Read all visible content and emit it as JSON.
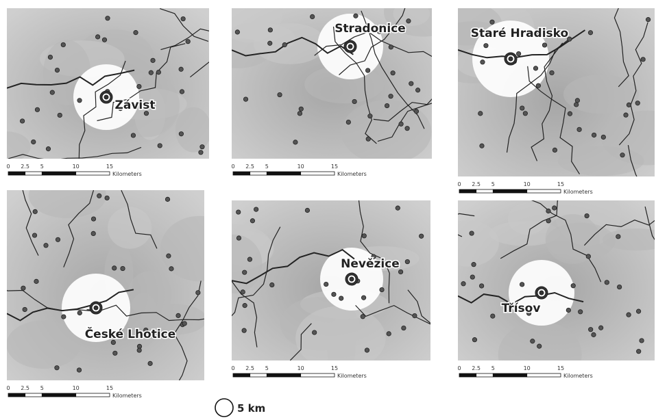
{
  "panels": [
    {
      "label": "Závist"
    },
    {
      "label": "Stradonice"
    },
    {
      "label": "Staré Hradisko"
    },
    {
      "label": "České Lhotice"
    },
    {
      "label": "Nevězice"
    },
    {
      "label": "Třísov"
    }
  ],
  "scale_bar": {
    "labels": [
      "0",
      "2.5",
      "5",
      "10",
      "15"
    ],
    "unit": "Kilometers"
  },
  "legend": {
    "label": "5 km"
  }
}
